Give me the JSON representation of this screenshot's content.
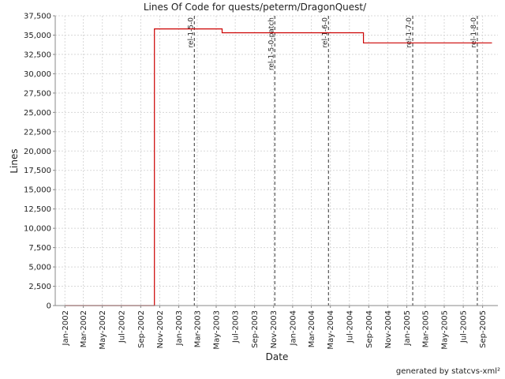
{
  "chart_data": {
    "type": "line",
    "title": "Lines Of Code for quests/peterm/DragonQuest/",
    "xlabel": "Date",
    "ylabel": "Lines",
    "ylim": [
      0,
      37500
    ],
    "xlim": [
      "2001-12-01",
      "2005-10-20"
    ],
    "yticks": [
      0,
      2500,
      5000,
      7500,
      10000,
      12500,
      15000,
      17500,
      20000,
      22500,
      25000,
      27500,
      30000,
      32500,
      35000,
      37500
    ],
    "xticks": [
      {
        "date": "2002-01-01",
        "label": "Jan-2002"
      },
      {
        "date": "2002-03-01",
        "label": "Mar-2002"
      },
      {
        "date": "2002-05-01",
        "label": "May-2002"
      },
      {
        "date": "2002-07-01",
        "label": "Jul-2002"
      },
      {
        "date": "2002-09-01",
        "label": "Sep-2002"
      },
      {
        "date": "2002-11-01",
        "label": "Nov-2002"
      },
      {
        "date": "2003-01-01",
        "label": "Jan-2003"
      },
      {
        "date": "2003-03-01",
        "label": "Mar-2003"
      },
      {
        "date": "2003-05-01",
        "label": "May-2003"
      },
      {
        "date": "2003-07-01",
        "label": "Jul-2003"
      },
      {
        "date": "2003-09-01",
        "label": "Sep-2003"
      },
      {
        "date": "2003-11-01",
        "label": "Nov-2003"
      },
      {
        "date": "2004-01-01",
        "label": "Jan-2004"
      },
      {
        "date": "2004-03-01",
        "label": "Mar-2004"
      },
      {
        "date": "2004-05-01",
        "label": "May-2004"
      },
      {
        "date": "2004-07-01",
        "label": "Jul-2004"
      },
      {
        "date": "2004-09-01",
        "label": "Sep-2004"
      },
      {
        "date": "2004-11-01",
        "label": "Nov-2004"
      },
      {
        "date": "2005-01-01",
        "label": "Jan-2005"
      },
      {
        "date": "2005-03-01",
        "label": "Mar-2005"
      },
      {
        "date": "2005-05-01",
        "label": "May-2005"
      },
      {
        "date": "2005-07-01",
        "label": "Jul-2005"
      },
      {
        "date": "2005-09-01",
        "label": "Sep-2005"
      }
    ],
    "grid": true,
    "series": [
      {
        "color": "#cc0000",
        "points": [
          {
            "x": "2002-01-01",
            "y": 0
          },
          {
            "x": "2002-10-15",
            "y": 0
          },
          {
            "x": "2002-10-15",
            "y": 35800
          },
          {
            "x": "2003-05-20",
            "y": 35800
          },
          {
            "x": "2003-05-20",
            "y": 35300
          },
          {
            "x": "2004-08-15",
            "y": 35300
          },
          {
            "x": "2004-08-15",
            "y": 34000
          },
          {
            "x": "2005-10-01",
            "y": 34000
          }
        ]
      }
    ],
    "markers": [
      {
        "date": "2003-02-20",
        "label": "rel-1-5-0"
      },
      {
        "date": "2003-11-05",
        "label": "rel-1-5-0-patch"
      },
      {
        "date": "2004-04-25",
        "label": "rel-1-6-0"
      },
      {
        "date": "2005-01-20",
        "label": "rel-1-7-0"
      },
      {
        "date": "2005-08-15",
        "label": "rel-1-8-0"
      }
    ]
  },
  "footer": "generated by statcvs-xml²"
}
